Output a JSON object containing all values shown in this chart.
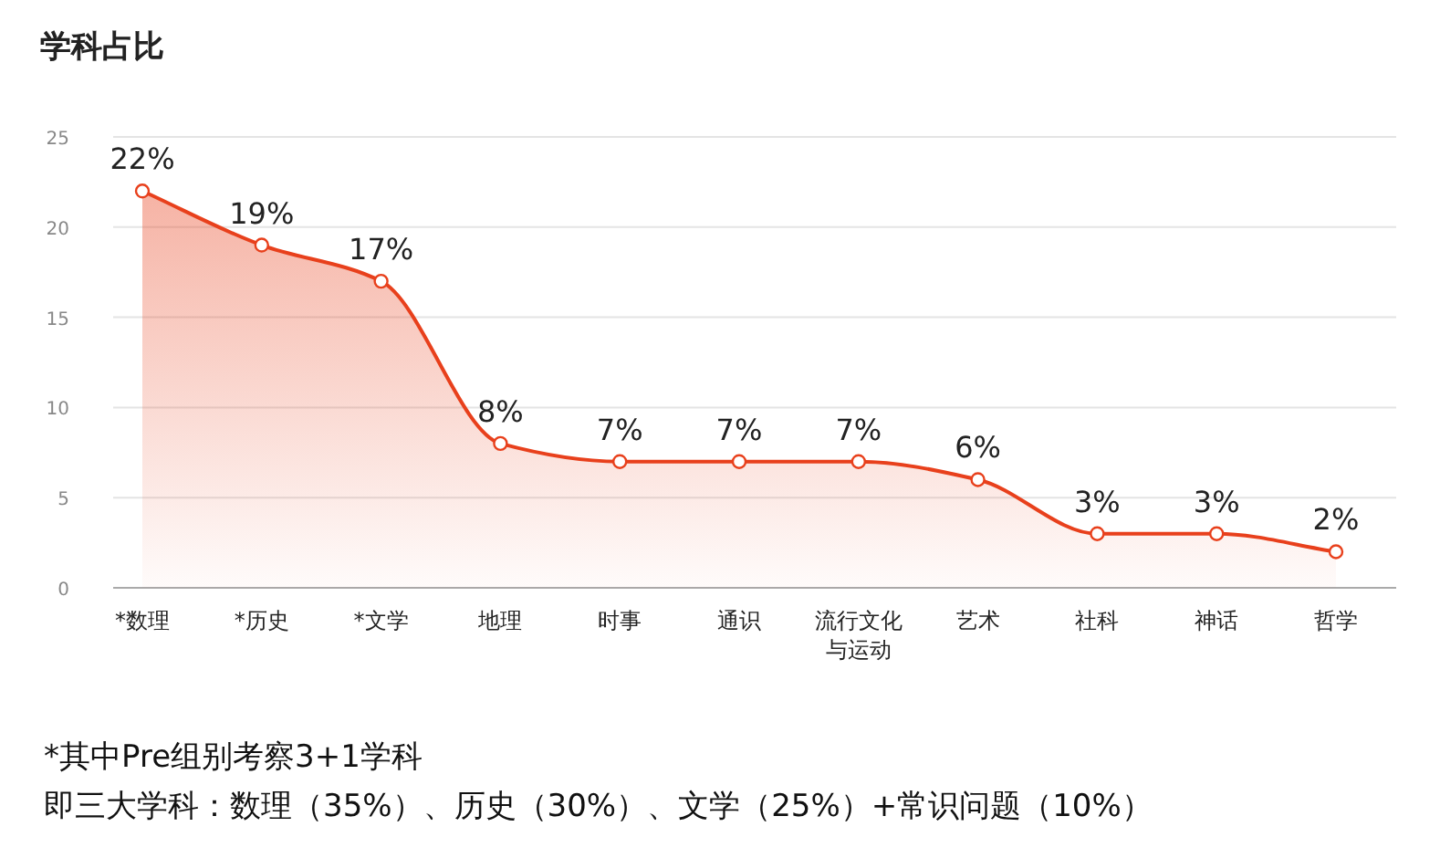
{
  "chart_data": {
    "type": "area",
    "title": "学科占比",
    "categories": [
      "*数理",
      "*历史",
      "*文学",
      "地理",
      "时事",
      "通识",
      "流行文化与运动",
      "艺术",
      "社科",
      "神话",
      "哲学"
    ],
    "values": [
      22,
      19,
      17,
      8,
      7,
      7,
      7,
      6,
      3,
      3,
      2
    ],
    "value_labels": [
      "22%",
      "19%",
      "17%",
      "8%",
      "7%",
      "7%",
      "7%",
      "6%",
      "3%",
      "3%",
      "2%"
    ],
    "color": "#e8401c",
    "ylim": [
      0,
      25
    ],
    "yticks": [
      0,
      5,
      10,
      15,
      20,
      25
    ],
    "grid": "y",
    "marker": "circle",
    "annotations": [
      "*其中Pre组别考察3+1学科",
      " 即三大学科：数理（35%）、历史（30%）、文学（25%）+常识问题（10%）"
    ]
  }
}
